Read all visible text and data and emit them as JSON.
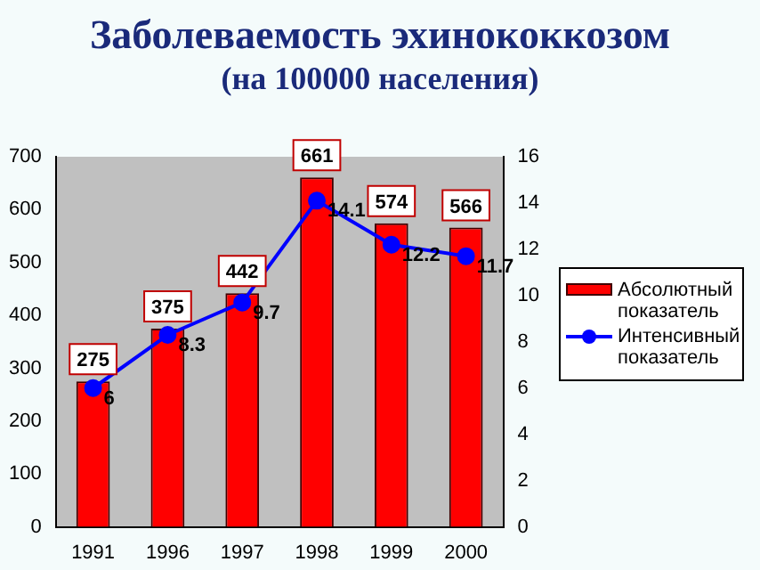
{
  "chart_data": {
    "type": "bar",
    "title": "Заболеваемость эхинококкозом",
    "subtitle": "(на 100000 населения)",
    "categories": [
      "1991",
      "1996",
      "1997",
      "1998",
      "1999",
      "2000"
    ],
    "series": [
      {
        "name": "Абсолютный показатель",
        "color": "#ff0000",
        "values": [
          275,
          375,
          442,
          661,
          574,
          566
        ]
      },
      {
        "name": "Интенсивный показатель",
        "type": "line",
        "axis": "y2",
        "color": "#0000ff",
        "marker": "circle",
        "values": [
          6,
          8.3,
          9.7,
          14.1,
          12.2,
          11.7
        ]
      }
    ],
    "ylim": [
      0,
      700
    ],
    "yticks": [
      0,
      100,
      200,
      300,
      400,
      500,
      600,
      700
    ],
    "y2lim": [
      0,
      16
    ],
    "y2ticks": [
      0,
      2,
      4,
      6,
      8,
      10,
      12,
      14,
      16
    ],
    "data_labels": true,
    "grid": false,
    "legend": "right"
  }
}
